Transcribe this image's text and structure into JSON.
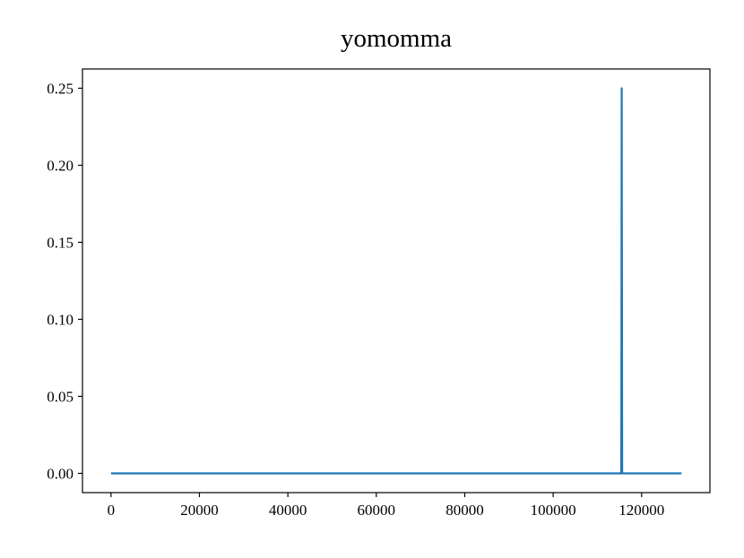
{
  "chart_data": {
    "type": "line",
    "title": "yomomma",
    "x": [
      0,
      115400,
      115500,
      115600,
      129000
    ],
    "series": [
      {
        "color": "#1f77b4",
        "values": [
          0,
          0,
          0.25,
          0,
          0
        ]
      }
    ],
    "xlim": [
      -6450,
      135450
    ],
    "ylim": [
      -0.0125,
      0.2625
    ],
    "xticks": [
      0,
      20000,
      40000,
      60000,
      80000,
      100000,
      120000
    ],
    "yticks": [
      {
        "value": 0,
        "label": "0.00"
      },
      {
        "value": 0.05,
        "label": "0.05"
      },
      {
        "value": 0.1,
        "label": "0.10"
      },
      {
        "value": 0.15,
        "label": "0.15"
      },
      {
        "value": 0.2,
        "label": "0.20"
      },
      {
        "value": 0.25,
        "label": "0.25"
      }
    ]
  }
}
